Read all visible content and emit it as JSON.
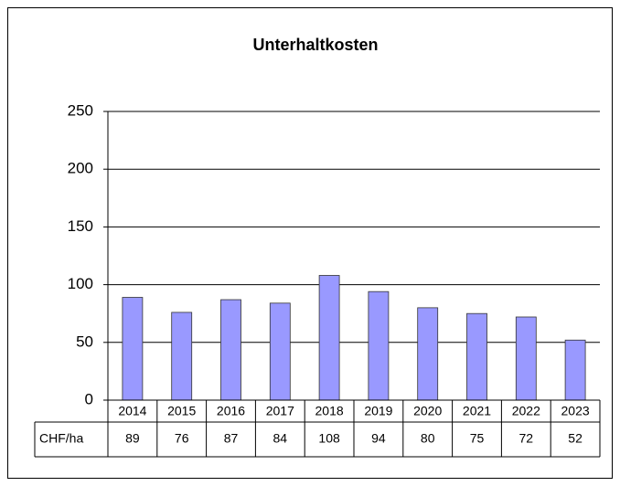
{
  "chart_data": {
    "type": "bar",
    "title": "Unterhaltkosten",
    "categories": [
      "2014",
      "2015",
      "2016",
      "2017",
      "2018",
      "2019",
      "2020",
      "2021",
      "2022",
      "2023"
    ],
    "series": [
      {
        "name": "CHF/ha",
        "color": "#9999ff",
        "values": [
          89,
          76,
          87,
          84,
          108,
          94,
          80,
          75,
          72,
          52
        ]
      }
    ],
    "ylim": [
      0,
      250
    ],
    "yticks": [
      0,
      50,
      100,
      150,
      200,
      250
    ],
    "grid": true,
    "data_table": true
  }
}
